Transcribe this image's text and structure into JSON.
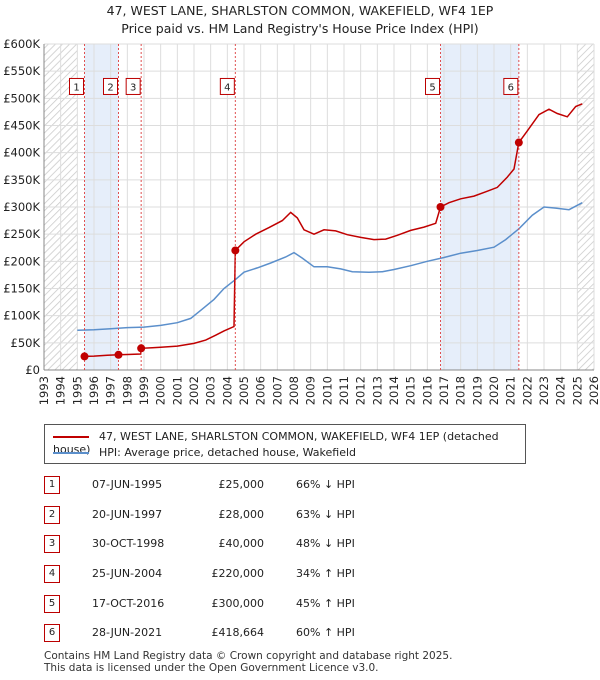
{
  "header": {
    "title": "47, WEST LANE, SHARLSTON COMMON, WAKEFIELD, WF4 1EP",
    "subtitle": "Price paid vs. HM Land Registry's House Price Index (HPI)"
  },
  "chart_data": {
    "type": "line",
    "xlim": [
      1993,
      2026
    ],
    "ylim": [
      0,
      600000
    ],
    "x_ticks": [
      "1993",
      "1994",
      "1995",
      "1996",
      "1997",
      "1998",
      "1999",
      "2000",
      "2001",
      "2002",
      "2003",
      "2004",
      "2005",
      "2006",
      "2007",
      "2008",
      "2009",
      "2010",
      "2011",
      "2012",
      "2013",
      "2014",
      "2015",
      "2016",
      "2017",
      "2018",
      "2019",
      "2020",
      "2021",
      "2022",
      "2023",
      "2024",
      "2025",
      "2026"
    ],
    "y_ticks": [
      {
        "value": 0,
        "label": "£0"
      },
      {
        "value": 50000,
        "label": "£50K"
      },
      {
        "value": 100000,
        "label": "£100K"
      },
      {
        "value": 150000,
        "label": "£150K"
      },
      {
        "value": 200000,
        "label": "£200K"
      },
      {
        "value": 250000,
        "label": "£250K"
      },
      {
        "value": 300000,
        "label": "£300K"
      },
      {
        "value": 350000,
        "label": "£350K"
      },
      {
        "value": 400000,
        "label": "£400K"
      },
      {
        "value": 450000,
        "label": "£450K"
      },
      {
        "value": 500000,
        "label": "£500K"
      },
      {
        "value": 550000,
        "label": "£550K"
      },
      {
        "value": 600000,
        "label": "£600K"
      }
    ],
    "grid": true,
    "hatched_ranges": [
      [
        1993,
        1995.0
      ],
      [
        2025.0,
        2026
      ]
    ],
    "series": [
      {
        "name": "47, WEST LANE, SHARLSTON COMMON, WAKEFIELD, WF4 1EP (detached house)",
        "color": "#c00000",
        "points": [
          [
            1995.43,
            25000
          ],
          [
            1996.0,
            25500
          ],
          [
            1996.8,
            27000
          ],
          [
            1997.47,
            28000
          ],
          [
            1998.0,
            28500
          ],
          [
            1998.8,
            29500
          ],
          [
            1998.83,
            40000
          ],
          [
            1999.5,
            41000
          ],
          [
            2000.0,
            42000
          ],
          [
            2001.0,
            44000
          ],
          [
            2002.0,
            49000
          ],
          [
            2002.7,
            55000
          ],
          [
            2003.3,
            64000
          ],
          [
            2003.8,
            72000
          ],
          [
            2004.4,
            80000
          ],
          [
            2004.48,
            220000
          ],
          [
            2005.0,
            236000
          ],
          [
            2005.7,
            250000
          ],
          [
            2006.5,
            262000
          ],
          [
            2007.3,
            275000
          ],
          [
            2007.8,
            290000
          ],
          [
            2008.2,
            280000
          ],
          [
            2008.6,
            258000
          ],
          [
            2009.2,
            250000
          ],
          [
            2009.8,
            258000
          ],
          [
            2010.5,
            256000
          ],
          [
            2011.2,
            249000
          ],
          [
            2012.0,
            244000
          ],
          [
            2012.8,
            240000
          ],
          [
            2013.5,
            241000
          ],
          [
            2014.2,
            248000
          ],
          [
            2015.0,
            257000
          ],
          [
            2015.8,
            263000
          ],
          [
            2016.5,
            270000
          ],
          [
            2016.79,
            300000
          ],
          [
            2017.3,
            308000
          ],
          [
            2018.0,
            315000
          ],
          [
            2018.8,
            320000
          ],
          [
            2019.5,
            328000
          ],
          [
            2020.2,
            336000
          ],
          [
            2020.8,
            355000
          ],
          [
            2021.2,
            370000
          ],
          [
            2021.49,
            418664
          ],
          [
            2022.0,
            440000
          ],
          [
            2022.7,
            470000
          ],
          [
            2023.3,
            480000
          ],
          [
            2023.8,
            472000
          ],
          [
            2024.4,
            466000
          ],
          [
            2024.9,
            485000
          ],
          [
            2025.3,
            490000
          ]
        ]
      },
      {
        "name": "HPI: Average price, detached house, Wakefield",
        "color": "#5b8fcb",
        "points": [
          [
            1995.0,
            73000
          ],
          [
            1996.0,
            74000
          ],
          [
            1997.0,
            76000
          ],
          [
            1998.0,
            78000
          ],
          [
            1999.0,
            79000
          ],
          [
            2000.0,
            82000
          ],
          [
            2001.0,
            87000
          ],
          [
            2001.8,
            95000
          ],
          [
            2002.5,
            112000
          ],
          [
            2003.2,
            130000
          ],
          [
            2003.8,
            150000
          ],
          [
            2004.5,
            167000
          ],
          [
            2005.0,
            180000
          ],
          [
            2005.8,
            188000
          ],
          [
            2006.6,
            197000
          ],
          [
            2007.5,
            208000
          ],
          [
            2008.0,
            216000
          ],
          [
            2008.5,
            206000
          ],
          [
            2009.2,
            190000
          ],
          [
            2010.0,
            190000
          ],
          [
            2010.8,
            186000
          ],
          [
            2011.5,
            181000
          ],
          [
            2012.5,
            180000
          ],
          [
            2013.3,
            181000
          ],
          [
            2014.0,
            185000
          ],
          [
            2015.0,
            192000
          ],
          [
            2016.0,
            200000
          ],
          [
            2017.0,
            207000
          ],
          [
            2018.0,
            215000
          ],
          [
            2019.0,
            220000
          ],
          [
            2020.0,
            226000
          ],
          [
            2020.7,
            240000
          ],
          [
            2021.5,
            260000
          ],
          [
            2022.3,
            285000
          ],
          [
            2023.0,
            300000
          ],
          [
            2023.7,
            298000
          ],
          [
            2024.5,
            295000
          ],
          [
            2025.3,
            308000
          ]
        ]
      }
    ],
    "sales": [
      {
        "label": "1",
        "x": 1995.43,
        "y": 25000
      },
      {
        "label": "2",
        "x": 1997.47,
        "y": 28000
      },
      {
        "label": "3",
        "x": 1998.83,
        "y": 40000
      },
      {
        "label": "4",
        "x": 2004.48,
        "y": 220000
      },
      {
        "label": "5",
        "x": 2016.79,
        "y": 300000
      },
      {
        "label": "6",
        "x": 2021.49,
        "y": 418664
      }
    ],
    "marker_y": 520000
  },
  "legend": {
    "items": [
      {
        "label": "47, WEST LANE, SHARLSTON COMMON, WAKEFIELD, WF4 1EP (detached house)",
        "color": "#c00000"
      },
      {
        "label": "HPI: Average price, detached house, Wakefield",
        "color": "#5b8fcb"
      }
    ]
  },
  "sales_table": [
    {
      "num": "1",
      "date": "07-JUN-1995",
      "price": "£25,000",
      "hpi": "66% ↓ HPI"
    },
    {
      "num": "2",
      "date": "20-JUN-1997",
      "price": "£28,000",
      "hpi": "63% ↓ HPI"
    },
    {
      "num": "3",
      "date": "30-OCT-1998",
      "price": "£40,000",
      "hpi": "48% ↓ HPI"
    },
    {
      "num": "4",
      "date": "25-JUN-2004",
      "price": "£220,000",
      "hpi": "34% ↑ HPI"
    },
    {
      "num": "5",
      "date": "17-OCT-2016",
      "price": "£300,000",
      "hpi": "45% ↑ HPI"
    },
    {
      "num": "6",
      "date": "28-JUN-2021",
      "price": "£418,664",
      "hpi": "60% ↑ HPI"
    }
  ],
  "footer": {
    "line1": "Contains HM Land Registry data © Crown copyright and database right 2025.",
    "line2": "This data is licensed under the Open Government Licence v3.0."
  }
}
